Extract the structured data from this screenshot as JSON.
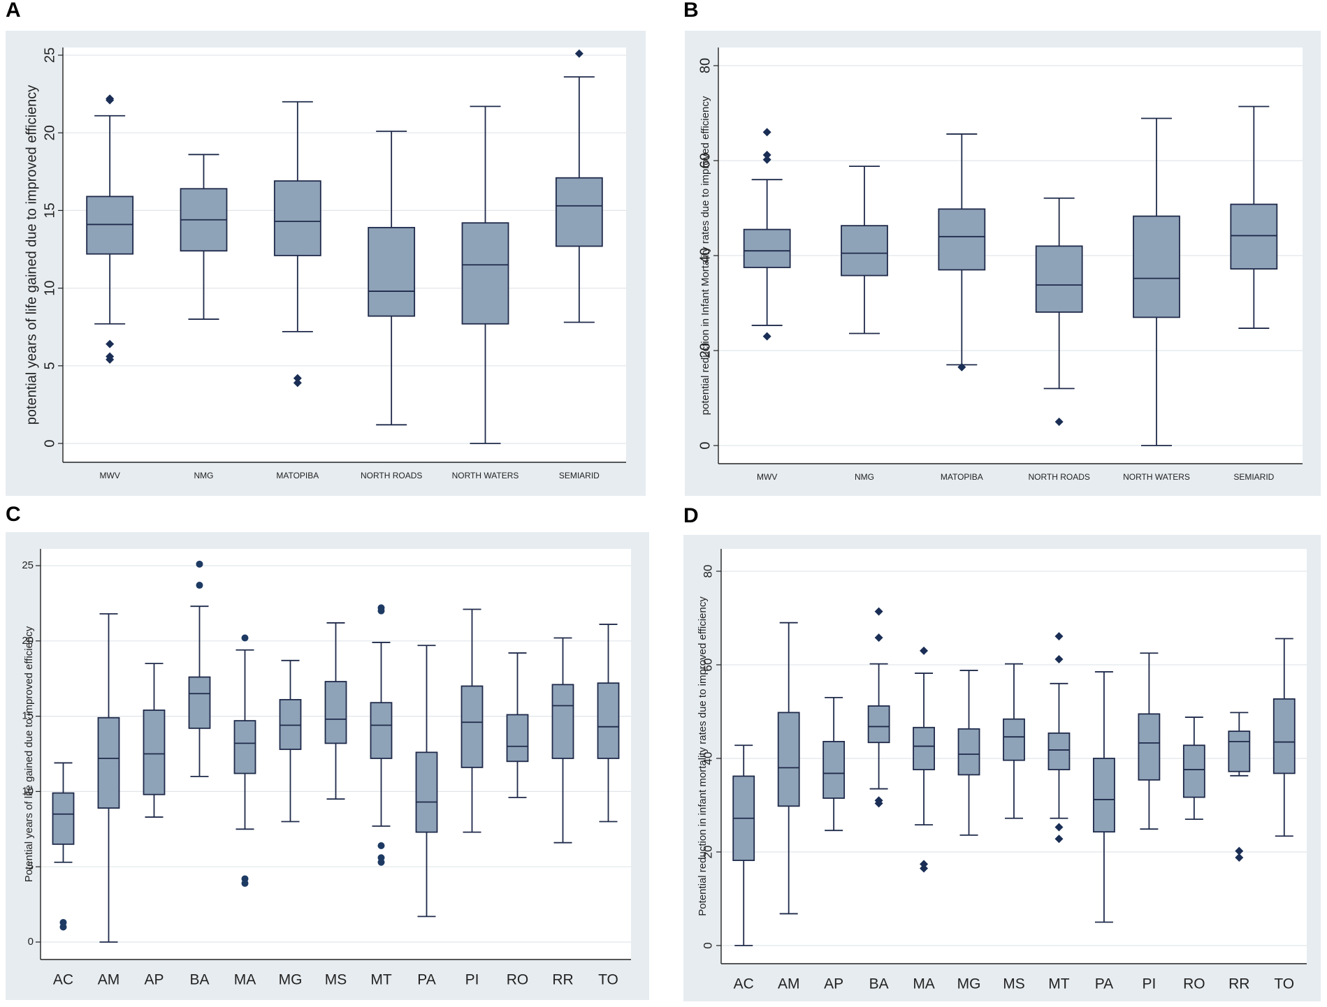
{
  "panels": {
    "A": {
      "letter": "A"
    },
    "B": {
      "letter": "B"
    },
    "C": {
      "letter": "C"
    },
    "D": {
      "letter": "D"
    }
  },
  "chart_data": [
    {
      "id": "A",
      "type": "box",
      "ylabel": "potential years of life gained due to improved efficiency",
      "ylim": [
        0,
        25
      ],
      "yticks": [
        0,
        5,
        10,
        15,
        20,
        25
      ],
      "categories": [
        "MWV",
        "NMG",
        "MATOPIBA",
        "NORTH ROADS",
        "NORTH WATERS",
        "SEMIARID"
      ],
      "boxes": [
        {
          "q1": 12.2,
          "median": 14.1,
          "q3": 15.9,
          "wlow": 7.7,
          "whigh": 21.1,
          "outliers": [
            22.1,
            22.2,
            6.4,
            5.6,
            5.4
          ]
        },
        {
          "q1": 12.4,
          "median": 14.4,
          "q3": 16.4,
          "wlow": 8.0,
          "whigh": 18.6,
          "outliers": []
        },
        {
          "q1": 12.1,
          "median": 14.3,
          "q3": 16.9,
          "wlow": 7.2,
          "whigh": 22.0,
          "outliers": [
            4.2,
            3.9
          ]
        },
        {
          "q1": 8.2,
          "median": 9.8,
          "q3": 13.9,
          "wlow": 1.2,
          "whigh": 20.1,
          "outliers": []
        },
        {
          "q1": 7.7,
          "median": 11.5,
          "q3": 14.2,
          "wlow": 0.0,
          "whigh": 21.7,
          "outliers": []
        },
        {
          "q1": 12.7,
          "median": 15.3,
          "q3": 17.1,
          "wlow": 7.8,
          "whigh": 23.6,
          "outliers": [
            25.1
          ]
        }
      ]
    },
    {
      "id": "B",
      "type": "box",
      "ylabel": "potential reduction in Infant Mortality rates due to improved efficiency",
      "ylim": [
        0,
        80
      ],
      "yticks": [
        0,
        20,
        40,
        60,
        80
      ],
      "categories": [
        "MWV",
        "NMG",
        "MATOPIBA",
        "NORTH ROADS",
        "NORTH WATERS",
        "SEMIARID"
      ],
      "boxes": [
        {
          "q1": 37.5,
          "median": 41.0,
          "q3": 45.5,
          "wlow": 25.3,
          "whigh": 56.0,
          "outliers": [
            66.0,
            61.2,
            60.2,
            23.0
          ]
        },
        {
          "q1": 35.8,
          "median": 40.5,
          "q3": 46.3,
          "wlow": 23.6,
          "whigh": 58.8,
          "outliers": []
        },
        {
          "q1": 37.0,
          "median": 44.0,
          "q3": 49.8,
          "wlow": 17.0,
          "whigh": 65.6,
          "outliers": [
            16.5
          ]
        },
        {
          "q1": 28.1,
          "median": 33.8,
          "q3": 42.0,
          "wlow": 12.0,
          "whigh": 52.1,
          "outliers": [
            5.0
          ]
        },
        {
          "q1": 27.0,
          "median": 35.2,
          "q3": 48.3,
          "wlow": 0.0,
          "whigh": 68.9,
          "outliers": []
        },
        {
          "q1": 37.2,
          "median": 44.2,
          "q3": 50.8,
          "wlow": 24.7,
          "whigh": 71.4,
          "outliers": []
        }
      ]
    },
    {
      "id": "C",
      "type": "box",
      "ylabel": "Potential years of life gained due to improved efficiency",
      "ylim": [
        0,
        25
      ],
      "yticks": [
        0,
        5,
        10,
        15,
        20,
        25
      ],
      "categories": [
        "AC",
        "AM",
        "AP",
        "BA",
        "MA",
        "MG",
        "MS",
        "MT",
        "PA",
        "PI",
        "RO",
        "RR",
        "TO"
      ],
      "boxes": [
        {
          "q1": 6.5,
          "median": 8.5,
          "q3": 9.9,
          "wlow": 5.3,
          "whigh": 11.9,
          "outliers": [
            1.3,
            1.0
          ]
        },
        {
          "q1": 8.9,
          "median": 12.2,
          "q3": 14.9,
          "wlow": 0.0,
          "whigh": 21.8,
          "outliers": []
        },
        {
          "q1": 9.8,
          "median": 12.5,
          "q3": 15.4,
          "wlow": 8.3,
          "whigh": 18.5,
          "outliers": []
        },
        {
          "q1": 14.2,
          "median": 16.5,
          "q3": 17.6,
          "wlow": 11.0,
          "whigh": 22.3,
          "outliers": [
            25.1,
            23.7
          ]
        },
        {
          "q1": 11.2,
          "median": 13.2,
          "q3": 14.7,
          "wlow": 7.5,
          "whigh": 19.4,
          "outliers": [
            20.2,
            4.2,
            3.9
          ]
        },
        {
          "q1": 12.8,
          "median": 14.4,
          "q3": 16.1,
          "wlow": 8.0,
          "whigh": 18.7,
          "outliers": []
        },
        {
          "q1": 13.2,
          "median": 14.8,
          "q3": 17.3,
          "wlow": 9.5,
          "whigh": 21.2,
          "outliers": []
        },
        {
          "q1": 12.2,
          "median": 14.4,
          "q3": 15.9,
          "wlow": 7.7,
          "whigh": 19.9,
          "outliers": [
            22.2,
            22.0,
            6.4,
            5.6,
            5.3
          ]
        },
        {
          "q1": 7.3,
          "median": 9.3,
          "q3": 12.6,
          "wlow": 1.7,
          "whigh": 19.7,
          "outliers": []
        },
        {
          "q1": 11.6,
          "median": 14.6,
          "q3": 17.0,
          "wlow": 7.3,
          "whigh": 22.1,
          "outliers": []
        },
        {
          "q1": 12.0,
          "median": 13.0,
          "q3": 15.1,
          "wlow": 9.6,
          "whigh": 19.2,
          "outliers": []
        },
        {
          "q1": 12.2,
          "median": 15.7,
          "q3": 17.1,
          "wlow": 6.6,
          "whigh": 20.2,
          "outliers": []
        },
        {
          "q1": 12.2,
          "median": 14.3,
          "q3": 17.2,
          "wlow": 8.0,
          "whigh": 21.1,
          "outliers": []
        }
      ]
    },
    {
      "id": "D",
      "type": "box",
      "ylabel": "Potential reduction in infant mortality rates due to improved efficiency",
      "ylim": [
        0,
        80
      ],
      "yticks": [
        0,
        20,
        40,
        60,
        80
      ],
      "categories": [
        "AC",
        "AM",
        "AP",
        "BA",
        "MA",
        "MG",
        "MS",
        "MT",
        "PA",
        "PI",
        "RO",
        "RR",
        "TO"
      ],
      "boxes": [
        {
          "q1": 18.2,
          "median": 27.2,
          "q3": 36.2,
          "wlow": 0.0,
          "whigh": 42.8,
          "outliers": []
        },
        {
          "q1": 29.8,
          "median": 38.0,
          "q3": 49.8,
          "wlow": 6.8,
          "whigh": 69.0,
          "outliers": []
        },
        {
          "q1": 31.5,
          "median": 36.8,
          "q3": 43.6,
          "wlow": 24.6,
          "whigh": 53.0,
          "outliers": []
        },
        {
          "q1": 43.4,
          "median": 46.8,
          "q3": 51.2,
          "wlow": 33.5,
          "whigh": 60.2,
          "outliers": [
            71.4,
            65.8,
            31.0,
            30.4
          ]
        },
        {
          "q1": 37.6,
          "median": 42.6,
          "q3": 46.6,
          "wlow": 25.8,
          "whigh": 58.2,
          "outliers": [
            63.0,
            17.4,
            16.5
          ]
        },
        {
          "q1": 36.5,
          "median": 40.9,
          "q3": 46.3,
          "wlow": 23.6,
          "whigh": 58.8,
          "outliers": []
        },
        {
          "q1": 39.6,
          "median": 44.6,
          "q3": 48.4,
          "wlow": 27.2,
          "whigh": 60.2,
          "outliers": []
        },
        {
          "q1": 37.6,
          "median": 41.8,
          "q3": 45.4,
          "wlow": 27.2,
          "whigh": 56.0,
          "outliers": [
            66.1,
            61.2,
            25.3,
            22.8
          ]
        },
        {
          "q1": 24.3,
          "median": 31.2,
          "q3": 40.0,
          "wlow": 5.0,
          "whigh": 58.5,
          "outliers": []
        },
        {
          "q1": 35.4,
          "median": 43.3,
          "q3": 49.5,
          "wlow": 24.9,
          "whigh": 62.5,
          "outliers": []
        },
        {
          "q1": 31.7,
          "median": 37.6,
          "q3": 42.8,
          "wlow": 27.0,
          "whigh": 48.8,
          "outliers": []
        },
        {
          "q1": 37.2,
          "median": 43.6,
          "q3": 45.8,
          "wlow": 36.3,
          "whigh": 49.8,
          "outliers": [
            20.2,
            18.8
          ]
        },
        {
          "q1": 36.8,
          "median": 43.5,
          "q3": 52.7,
          "wlow": 23.4,
          "whigh": 65.6,
          "outliers": []
        }
      ]
    }
  ]
}
